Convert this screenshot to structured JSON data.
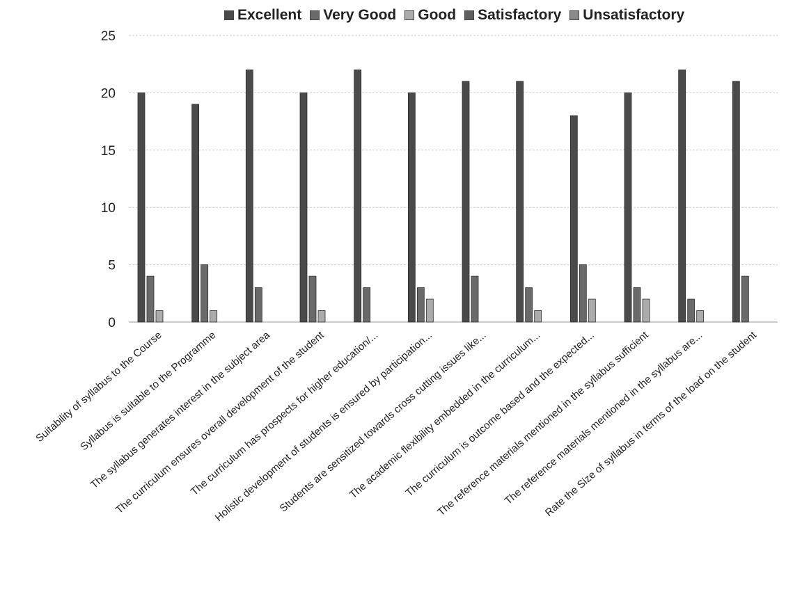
{
  "chart_data": {
    "type": "bar",
    "title": "",
    "xlabel": "",
    "ylabel": "",
    "ylim": [
      0,
      25
    ],
    "yticks": [
      0,
      5,
      10,
      15,
      20,
      25
    ],
    "grid": true,
    "legend_position": "top",
    "categories": [
      "Suitability of syllabus to the Course",
      "Syllabus is suitable to the Programme",
      "The syllabus generates interest in the subject area",
      "The curriculum ensures overall development of the student",
      "The curriculum has prospects for higher education/...",
      "Holistic development of students  is ensured by participation...",
      "Students are sensitized towards cross cutting issues like...",
      "The  academic  flexibility embedded  in the curriculum...",
      "The  curriculum is outcome based and the expected...",
      "The reference materials mentioned in the syllabus sufficient",
      "The reference materials mentioned in the syllabus are...",
      "Rate the Size of syllabus in terms of the load on the student"
    ],
    "series": [
      {
        "name": "Excellent",
        "color": "#4a4a4a",
        "values": [
          20,
          19,
          22,
          20,
          22,
          20,
          21,
          21,
          18,
          20,
          22,
          21
        ]
      },
      {
        "name": "Very Good",
        "color": "#6a6a6a",
        "values": [
          4,
          5,
          3,
          4,
          3,
          3,
          4,
          3,
          5,
          3,
          2,
          4
        ]
      },
      {
        "name": "Good",
        "color": "#ababab",
        "values": [
          1,
          1,
          0,
          1,
          0,
          2,
          0,
          1,
          2,
          2,
          1,
          0
        ]
      },
      {
        "name": "Satisfactory",
        "color": "#5e5e5e",
        "values": [
          0,
          0,
          0,
          0,
          0,
          0,
          0,
          0,
          0,
          0,
          0,
          0
        ]
      },
      {
        "name": "Unsatisfactory",
        "color": "#8a8a8a",
        "values": [
          0,
          0,
          0,
          0,
          0,
          0,
          0,
          0,
          0,
          0,
          0,
          0
        ]
      }
    ]
  }
}
